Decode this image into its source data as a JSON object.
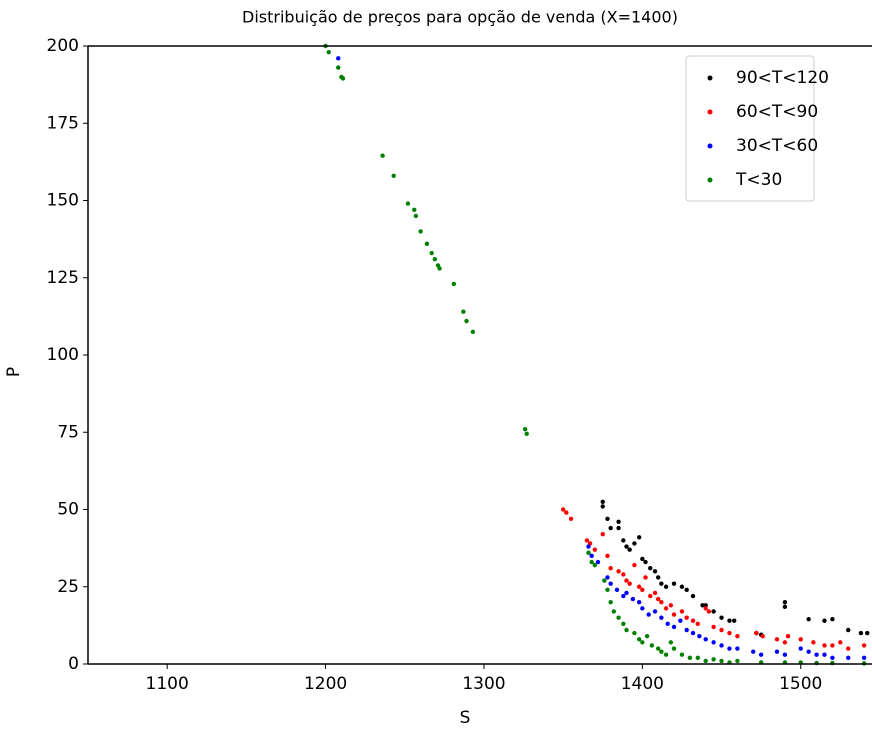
{
  "chart_data": {
    "type": "scatter",
    "title": "Distribuição de preços para opção de venda (X=1400)",
    "xlabel": "S",
    "ylabel": "P",
    "xlim": [
      1050,
      1545
    ],
    "ylim": [
      0,
      200
    ],
    "xticks": [
      1100,
      1200,
      1300,
      1400,
      1500
    ],
    "yticks": [
      0,
      25,
      50,
      75,
      100,
      125,
      150,
      175,
      200
    ],
    "legend": "upper right",
    "series": [
      {
        "name": "90<T<120",
        "color": "#000000",
        "x": [
          1375,
          1375,
          1378,
          1380,
          1385,
          1385,
          1388,
          1390,
          1392,
          1395,
          1398,
          1400,
          1402,
          1405,
          1408,
          1410,
          1412,
          1415,
          1420,
          1425,
          1428,
          1432,
          1438,
          1440,
          1445,
          1450,
          1455,
          1458,
          1472,
          1475,
          1490,
          1490,
          1505,
          1515,
          1520,
          1530,
          1538,
          1542
        ],
        "values": [
          52.5,
          51,
          47,
          44,
          46,
          44,
          40,
          38,
          37,
          39,
          41,
          34,
          33,
          31,
          30,
          28,
          26,
          25,
          26,
          25,
          24,
          22,
          19,
          19,
          17,
          15,
          14,
          14,
          10,
          9.5,
          20,
          18.5,
          14.5,
          14,
          14.5,
          11,
          10,
          10
        ]
      },
      {
        "name": "60<T<90",
        "color": "#ff0000",
        "x": [
          1350,
          1352,
          1355,
          1365,
          1367,
          1370,
          1375,
          1378,
          1380,
          1385,
          1388,
          1390,
          1392,
          1395,
          1398,
          1400,
          1402,
          1405,
          1408,
          1410,
          1412,
          1415,
          1418,
          1420,
          1425,
          1428,
          1432,
          1435,
          1440,
          1442,
          1445,
          1450,
          1455,
          1460,
          1472,
          1476,
          1485,
          1490,
          1492,
          1500,
          1508,
          1515,
          1520,
          1525,
          1530,
          1540
        ],
        "values": [
          50,
          49,
          47,
          40,
          39,
          37,
          42,
          35,
          31,
          30,
          29,
          27,
          26,
          32,
          25,
          24,
          28,
          22,
          23,
          21,
          20,
          18,
          19,
          16,
          17,
          15,
          14,
          13,
          18,
          17,
          12,
          11,
          10,
          9,
          10,
          9,
          8,
          7,
          9,
          8,
          7,
          6,
          6,
          7,
          5,
          6
        ]
      },
      {
        "name": "30<T<60",
        "color": "#0000ff",
        "x": [
          1208,
          1366,
          1368,
          1372,
          1378,
          1380,
          1384,
          1388,
          1390,
          1394,
          1398,
          1400,
          1404,
          1408,
          1412,
          1416,
          1420,
          1424,
          1428,
          1432,
          1436,
          1440,
          1445,
          1450,
          1455,
          1460,
          1470,
          1475,
          1485,
          1490,
          1500,
          1505,
          1510,
          1515,
          1520,
          1530,
          1540
        ],
        "values": [
          196,
          38,
          35,
          33,
          28,
          26,
          24,
          22,
          23,
          21,
          20,
          18,
          16,
          17,
          15,
          13,
          12,
          14,
          11,
          10,
          9,
          8,
          7,
          6,
          5,
          5,
          4,
          3,
          4,
          3,
          5,
          4,
          3,
          3,
          2,
          2,
          2
        ]
      },
      {
        "name": "T<30",
        "color": "#008000",
        "x": [
          1200,
          1202,
          1208,
          1210,
          1211,
          1236,
          1243,
          1252,
          1256,
          1257,
          1260,
          1264,
          1267,
          1269,
          1271,
          1272,
          1281,
          1287,
          1289,
          1293,
          1326,
          1327,
          1366,
          1368,
          1370,
          1376,
          1378,
          1380,
          1382,
          1385,
          1388,
          1390,
          1395,
          1398,
          1400,
          1403,
          1406,
          1410,
          1412,
          1415,
          1418,
          1420,
          1425,
          1430,
          1435,
          1440,
          1445,
          1450,
          1455,
          1460,
          1475,
          1490,
          1500,
          1510,
          1520,
          1540
        ],
        "values": [
          200,
          198,
          193,
          190,
          189.5,
          164.5,
          158,
          149,
          147,
          145,
          140,
          136,
          133,
          131,
          129,
          128,
          123,
          114,
          111,
          107.5,
          76,
          74.5,
          36,
          33,
          32,
          27,
          24,
          20,
          17,
          15,
          13,
          11,
          10,
          8,
          7,
          9,
          6,
          5,
          4,
          3,
          7,
          5,
          3,
          2,
          2,
          1,
          1.5,
          1,
          0.5,
          1,
          0.5,
          0.5,
          0.5,
          0.3,
          0.3,
          0.2
        ]
      }
    ]
  }
}
